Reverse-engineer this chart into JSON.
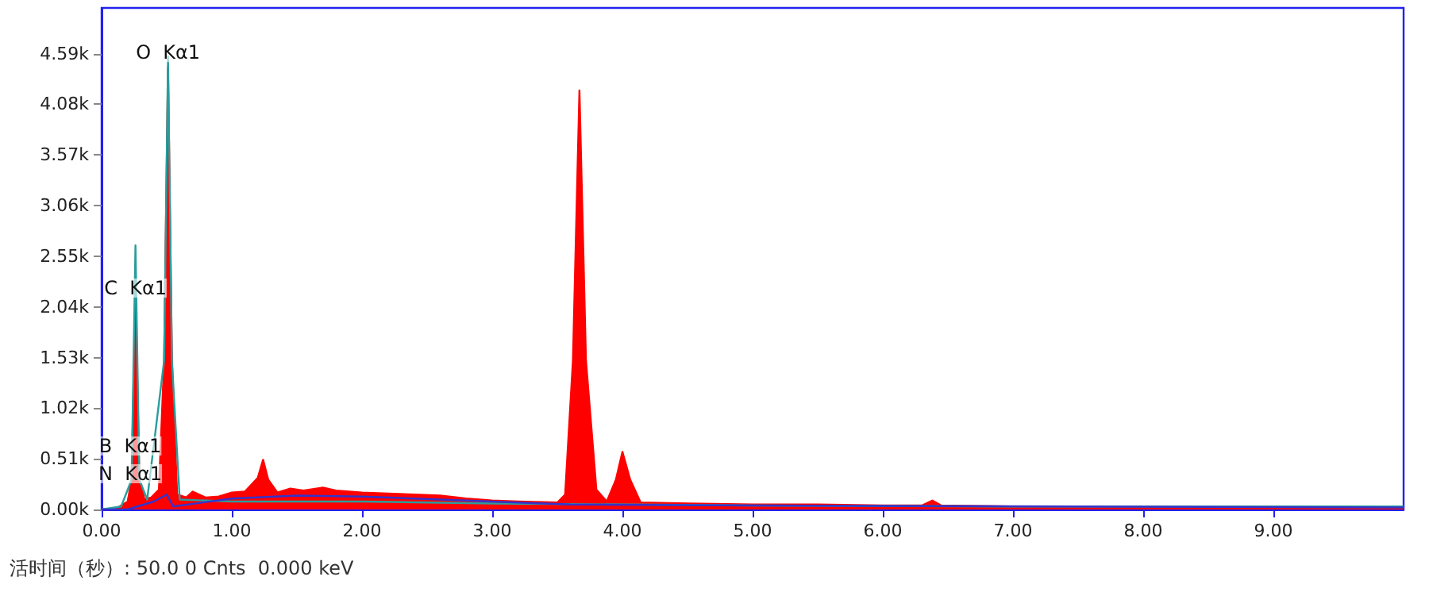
{
  "chart_data": {
    "type": "area",
    "xlim": [
      0,
      10
    ],
    "ylim": [
      0,
      5050
    ],
    "xticks": [
      {
        "value": 0,
        "label": "0.00"
      },
      {
        "value": 1,
        "label": "1.00"
      },
      {
        "value": 2,
        "label": "2.00"
      },
      {
        "value": 3,
        "label": "3.00"
      },
      {
        "value": 4,
        "label": "4.00"
      },
      {
        "value": 5,
        "label": "5.00"
      },
      {
        "value": 6,
        "label": "6.00"
      },
      {
        "value": 7,
        "label": "7.00"
      },
      {
        "value": 8,
        "label": "8.00"
      },
      {
        "value": 9,
        "label": "9.00"
      }
    ],
    "yticks": [
      {
        "value": 0,
        "label": "0.00k"
      },
      {
        "value": 510,
        "label": "0.51k"
      },
      {
        "value": 1020,
        "label": "1.02k"
      },
      {
        "value": 1530,
        "label": "1.53k"
      },
      {
        "value": 2040,
        "label": "2.04k"
      },
      {
        "value": 2550,
        "label": "2.55k"
      },
      {
        "value": 3060,
        "label": "3.06k"
      },
      {
        "value": 3570,
        "label": "3.57k"
      },
      {
        "value": 4080,
        "label": "4.08k"
      },
      {
        "value": 4590,
        "label": "4.59k"
      }
    ],
    "grid": false,
    "marker": "none",
    "line_style": "solid",
    "series": [
      {
        "type": "line",
        "color": "#2a9d9d",
        "x": [
          0,
          0.15,
          0.23,
          0.26,
          0.29,
          0.35,
          0.48,
          0.51,
          0.54,
          0.6,
          1,
          2,
          3,
          5,
          7,
          10
        ],
        "values": [
          0,
          30,
          300,
          2660,
          300,
          100,
          1500,
          4560,
          1500,
          100,
          80,
          80,
          60,
          40,
          30,
          30
        ]
      },
      {
        "type": "area",
        "color": "#ff0000",
        "x": [
          0,
          0.1,
          0.15,
          0.2,
          0.23,
          0.26,
          0.29,
          0.33,
          0.38,
          0.44,
          0.48,
          0.51,
          0.54,
          0.58,
          0.65,
          0.7,
          0.8,
          0.9,
          1.0,
          1.1,
          1.2,
          1.24,
          1.28,
          1.35,
          1.45,
          1.55,
          1.7,
          1.8,
          1.9,
          2.0,
          2.2,
          2.4,
          2.6,
          2.8,
          3.0,
          3.2,
          3.5,
          3.56,
          3.62,
          3.67,
          3.72,
          3.8,
          3.88,
          3.95,
          4.0,
          4.06,
          4.14,
          4.5,
          5.0,
          5.5,
          6.0,
          6.3,
          6.38,
          6.45,
          7,
          8,
          9,
          10
        ],
        "values": [
          0,
          0,
          40,
          80,
          300,
          2180,
          300,
          100,
          120,
          200,
          1500,
          4450,
          1500,
          150,
          120,
          180,
          120,
          130,
          170,
          180,
          320,
          500,
          300,
          170,
          210,
          190,
          220,
          190,
          180,
          170,
          160,
          150,
          140,
          110,
          90,
          80,
          70,
          150,
          1500,
          4220,
          1500,
          200,
          80,
          300,
          580,
          300,
          70,
          60,
          50,
          50,
          40,
          40,
          90,
          40,
          30,
          20,
          20,
          10
        ]
      },
      {
        "type": "line",
        "color": "#3333cc",
        "x": [
          0,
          0.2,
          0.4,
          0.5,
          0.55,
          1.0,
          1.5,
          2.0,
          3.0,
          3.6,
          5,
          10
        ],
        "values": [
          0,
          0,
          80,
          150,
          30,
          110,
          140,
          130,
          80,
          50,
          40,
          20
        ]
      }
    ],
    "annotations": [
      {
        "text": "O  Kα1",
        "x": 0.51,
        "y": 4600
      },
      {
        "text": "C  Kα1",
        "x": 0.26,
        "y": 2230
      },
      {
        "text": "B  Kα1",
        "x": 0.22,
        "y": 640
      },
      {
        "text": "N  Kα1",
        "x": 0.22,
        "y": 360
      },
      "活时间（秒）: 50.0 0 Cnts  0.000 keV"
    ]
  }
}
